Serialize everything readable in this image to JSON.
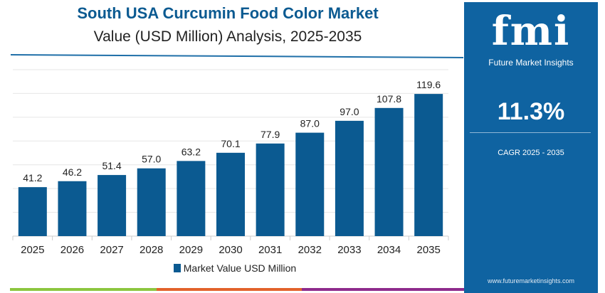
{
  "header": {
    "title": "South USA Curcumin Food Color Market",
    "subtitle": "Value (USD Million) Analysis, 2025-2035"
  },
  "panel": {
    "logo_text": "fmi",
    "logo_subtext": "Future Market Insights",
    "cagr_value": "11.3%",
    "cagr_label": "CAGR 2025 - 2035",
    "url": "www.futuremarketinsights.com"
  },
  "colors": {
    "bar": "#0b5a91",
    "panel": "#0f63a1",
    "stripes": [
      "#8cc63f",
      "#e2622b",
      "#8e2b8c"
    ]
  },
  "chart_data": {
    "type": "bar",
    "categories": [
      "2025",
      "2026",
      "2027",
      "2028",
      "2029",
      "2030",
      "2031",
      "2032",
      "2033",
      "2034",
      "2035"
    ],
    "series": [
      {
        "name": "Market Value USD Million",
        "values": [
          41.2,
          46.2,
          51.4,
          57.0,
          63.2,
          70.1,
          77.9,
          87.0,
          97.0,
          107.8,
          119.6
        ]
      }
    ],
    "data_labels": [
      "41.2",
      "46.2",
      "51.4",
      "57.0",
      "63.2",
      "70.1",
      "77.9",
      "87.0",
      "97.0",
      "107.8",
      "119.6"
    ],
    "ylim": [
      0,
      140
    ],
    "grid": true,
    "legend": "bottom"
  }
}
